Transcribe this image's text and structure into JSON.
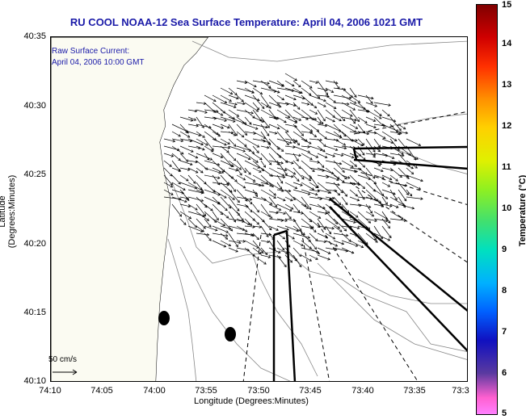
{
  "title": "RU COOL  NOAA-12  Sea Surface Temperature:  April 04, 2006 1021 GMT",
  "legend": {
    "line1": "Raw Surface Current:",
    "line2": "April 04, 2006 10:00 GMT",
    "scale_label": "50 cm/s"
  },
  "axes": {
    "xlabel": "Longitude (Degrees:Minutes)",
    "ylabel": "Latitude (Degrees:Minutes)",
    "xticks": [
      "74:10",
      "74:05",
      "74:00",
      "73:55",
      "73:50",
      "73:45",
      "73:40",
      "73:35",
      "73:3"
    ],
    "yticks": [
      "40:35",
      "40:30",
      "40:25",
      "40:20",
      "40:15",
      "40:10"
    ]
  },
  "colorbar": {
    "label": "Temperature (°C)",
    "ticks": [
      "15",
      "14",
      "13",
      "12",
      "11",
      "10",
      "9",
      "8",
      "7",
      "6",
      "5"
    ]
  }
}
